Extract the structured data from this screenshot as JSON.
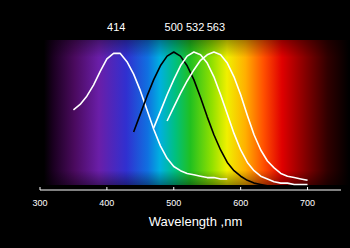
{
  "chart_data": {
    "type": "line",
    "x_label": "Wavelength ,nm",
    "x": [
      350,
      360,
      370,
      380,
      390,
      400,
      410,
      420,
      430,
      440,
      450,
      460,
      470,
      480,
      490,
      500,
      510,
      520,
      530,
      540,
      550,
      560,
      570,
      580,
      590,
      600,
      610,
      620,
      630,
      640,
      650,
      660,
      670,
      680,
      690,
      700
    ],
    "series": [
      {
        "color": "#ffffff",
        "values": [
          0.58,
          0.62,
          0.68,
          0.76,
          0.86,
          0.95,
          0.99,
          0.99,
          0.93,
          0.84,
          0.72,
          0.58,
          0.44,
          0.32,
          0.23,
          0.17,
          0.14,
          0.12,
          0.11,
          0.1,
          0.09,
          0.09,
          0.08,
          0.08,
          null,
          null,
          null,
          null,
          null,
          null,
          null,
          null,
          null,
          null,
          null,
          null
        ]
      },
      {
        "color": "#000000",
        "values": [
          null,
          null,
          null,
          null,
          null,
          null,
          null,
          null,
          null,
          0.42,
          0.55,
          0.68,
          0.8,
          0.9,
          0.97,
          1.0,
          0.97,
          0.9,
          0.8,
          0.67,
          0.53,
          0.4,
          0.29,
          0.2,
          0.14,
          0.1,
          0.07,
          0.05,
          0.04,
          0.03,
          0.03,
          null,
          null,
          null,
          null,
          null
        ]
      },
      {
        "color": "#ffffff",
        "values": [
          null,
          null,
          null,
          null,
          null,
          null,
          null,
          null,
          null,
          null,
          null,
          null,
          0.45,
          0.57,
          0.69,
          0.8,
          0.9,
          0.97,
          1.0,
          0.98,
          0.92,
          0.82,
          0.69,
          0.55,
          0.41,
          0.29,
          0.2,
          0.14,
          0.1,
          0.08,
          0.06,
          0.05,
          0.05,
          0.04,
          0.04,
          0.04
        ]
      },
      {
        "color": "#ffffff",
        "values": [
          null,
          null,
          null,
          null,
          null,
          null,
          null,
          null,
          null,
          null,
          null,
          null,
          null,
          null,
          0.5,
          0.6,
          0.7,
          0.79,
          0.87,
          0.94,
          0.98,
          1.0,
          0.98,
          0.92,
          0.82,
          0.69,
          0.54,
          0.4,
          0.29,
          0.21,
          0.16,
          0.12,
          0.1,
          0.09,
          0.08,
          0.07
        ]
      }
    ],
    "annotations": [
      {
        "text": "414",
        "x": 414
      },
      {
        "text": "500",
        "x": 500
      },
      {
        "text": "532",
        "x": 532
      },
      {
        "text": "563",
        "x": 563
      }
    ],
    "xlim": [
      300,
      750
    ],
    "xticks": [
      300,
      400,
      500,
      600,
      700
    ],
    "ylim": [
      0,
      1
    ],
    "tick_labels": "x",
    "grid": false
  }
}
